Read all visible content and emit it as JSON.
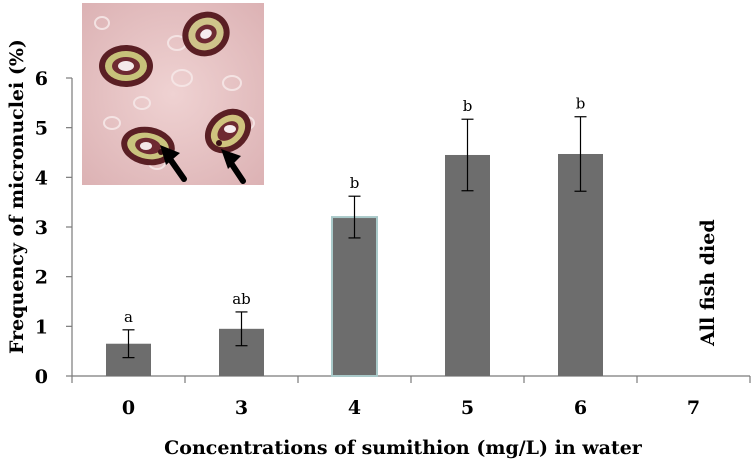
{
  "chart_data": {
    "type": "bar",
    "title": "",
    "xlabel": "Concentrations of sumithion (mg/L) in water",
    "ylabel": "Frequency of micronuclei (%)",
    "ylim": [
      0,
      6
    ],
    "yticks": [
      "0",
      "1",
      "2",
      "3",
      "4",
      "5",
      "6"
    ],
    "categories": [
      "0",
      "3",
      "4",
      "5",
      "6",
      "7"
    ],
    "values": [
      0.65,
      0.95,
      3.2,
      4.45,
      4.47,
      null
    ],
    "errors": [
      0.28,
      0.34,
      0.42,
      0.72,
      0.75,
      null
    ],
    "significance": [
      "a",
      "ab",
      "b",
      "b",
      "b",
      ""
    ],
    "annotations": [
      "All fish died"
    ],
    "grid": false,
    "colors": {
      "bar": "#6d6d6d",
      "bar_highlight_edge": "#a9c9c9",
      "axis": "#7a7a7a"
    }
  }
}
